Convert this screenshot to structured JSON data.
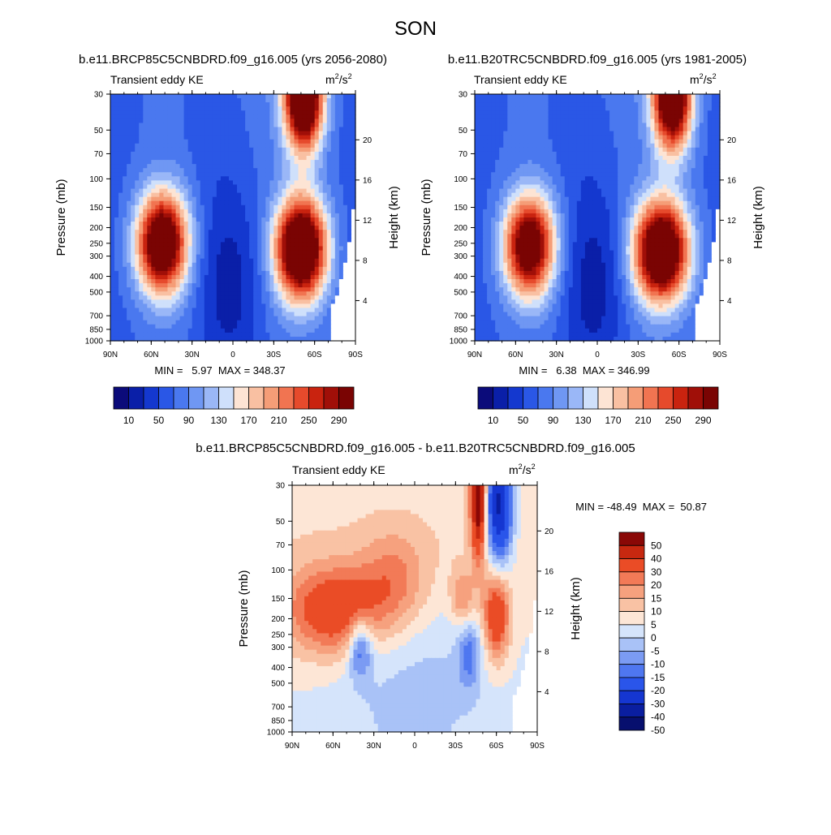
{
  "page_title": "SON",
  "chart_data": [
    {
      "type": "heatmap",
      "id": "top-left",
      "title": "b.e11.BRCP85C5CNBDRD.f09_g16.005 (yrs 2056-2080)",
      "subtitle": "Transient eddy KE",
      "units_base": "m",
      "units_sup1": "2",
      "units_mid": "/s",
      "units_sup2": "2",
      "xlabel": "",
      "ylabel": "Pressure (mb)",
      "ylabel_right": "Height (km)",
      "x_ticks": [
        "90N",
        "60N",
        "30N",
        "0",
        "30S",
        "60S",
        "90S"
      ],
      "y_ticks": [
        "30",
        "50",
        "70",
        "100",
        "150",
        "200",
        "250",
        "300",
        "400",
        "500",
        "700",
        "850",
        "1000"
      ],
      "right_ticks": [
        "20",
        "16",
        "12",
        "8",
        "4"
      ],
      "min_label": "MIN =   5.97  MAX = 348.37",
      "min": 5.97,
      "max": 348.37,
      "levels": [
        10,
        30,
        50,
        70,
        90,
        110,
        130,
        150,
        170,
        190,
        210,
        230,
        250,
        270,
        290
      ],
      "colorbar_labels": [
        "10",
        "50",
        "90",
        "130",
        "170",
        "210",
        "250",
        "290"
      ],
      "features": [
        {
          "kind": "jet",
          "lat": -50,
          "p": 270,
          "peak": 335,
          "sx": 13,
          "sy": 0.5
        },
        {
          "kind": "jet",
          "lat": 52,
          "p": 250,
          "peak": 300,
          "sx": 13,
          "sy": 0.5
        },
        {
          "kind": "strat",
          "lat": -52,
          "p": 30,
          "peak": 345,
          "sx": 10,
          "sy": 0.55
        },
        {
          "kind": "trop",
          "lat": 3,
          "p": 450,
          "peak": -65,
          "sx": 18,
          "sy": 1.2
        }
      ]
    },
    {
      "type": "heatmap",
      "id": "top-right",
      "title": "b.e11.B20TRC5CNBDRD.f09_g16.005 (yrs 1981-2005)",
      "subtitle": "Transient eddy KE",
      "units_base": "m",
      "units_sup1": "2",
      "units_mid": "/s",
      "units_sup2": "2",
      "xlabel": "",
      "ylabel": "Pressure (mb)",
      "ylabel_right": "Height (km)",
      "x_ticks": [
        "90N",
        "60N",
        "30N",
        "0",
        "30S",
        "60S",
        "90S"
      ],
      "y_ticks": [
        "30",
        "50",
        "70",
        "100",
        "150",
        "200",
        "250",
        "300",
        "400",
        "500",
        "700",
        "850",
        "1000"
      ],
      "right_ticks": [
        "20",
        "16",
        "12",
        "8",
        "4"
      ],
      "min_label": "MIN =   6.38  MAX = 346.99",
      "min": 6.38,
      "max": 346.99,
      "levels": [
        10,
        30,
        50,
        70,
        90,
        110,
        130,
        150,
        170,
        190,
        210,
        230,
        250,
        270,
        290
      ],
      "colorbar_labels": [
        "10",
        "50",
        "90",
        "130",
        "170",
        "210",
        "250",
        "290"
      ],
      "features": [
        {
          "kind": "jet",
          "lat": -47,
          "p": 280,
          "peak": 320,
          "sx": 14,
          "sy": 0.5
        },
        {
          "kind": "jet",
          "lat": 50,
          "p": 260,
          "peak": 275,
          "sx": 13,
          "sy": 0.5
        },
        {
          "kind": "strat",
          "lat": -55,
          "p": 30,
          "peak": 330,
          "sx": 10,
          "sy": 0.55
        },
        {
          "kind": "trop",
          "lat": 3,
          "p": 450,
          "peak": -65,
          "sx": 18,
          "sy": 1.2
        }
      ]
    },
    {
      "type": "heatmap",
      "id": "difference",
      "title": "b.e11.BRCP85C5CNBDRD.f09_g16.005 - b.e11.B20TRC5CNBDRD.f09_g16.005",
      "subtitle": "Transient eddy KE",
      "units_base": "m",
      "units_sup1": "2",
      "units_mid": "/s",
      "units_sup2": "2",
      "xlabel": "",
      "ylabel": "Pressure (mb)",
      "ylabel_right": "Height (km)",
      "x_ticks": [
        "90N",
        "60N",
        "30N",
        "0",
        "30S",
        "60S",
        "90S"
      ],
      "y_ticks": [
        "30",
        "50",
        "70",
        "100",
        "150",
        "200",
        "250",
        "300",
        "400",
        "500",
        "700",
        "850",
        "1000"
      ],
      "right_ticks": [
        "20",
        "16",
        "12",
        "8",
        "4"
      ],
      "min_label": "MIN = -48.49  MAX =  50.87",
      "min": -48.49,
      "max": 50.87,
      "levels": [
        -50,
        -40,
        -30,
        -20,
        -15,
        -10,
        -5,
        0,
        5,
        10,
        15,
        20,
        30,
        40,
        50
      ],
      "colorbar_labels": [
        "50",
        "40",
        "30",
        "20",
        "15",
        "10",
        "5",
        "0",
        "-5",
        "-10",
        "-15",
        "-20",
        "-30",
        "-40",
        "-50"
      ],
      "features": [
        {
          "kind": "band",
          "lat": 60,
          "p": 180,
          "peak": 28,
          "sx": 25,
          "sy": 0.45
        },
        {
          "kind": "band",
          "lat": 15,
          "p": 120,
          "peak": 15,
          "sx": 18,
          "sy": 0.5
        },
        {
          "kind": "strat",
          "lat": -47,
          "p": 35,
          "peak": 50,
          "sx": 4,
          "sy": 0.6
        },
        {
          "kind": "strat",
          "lat": -62,
          "p": 40,
          "peak": -45,
          "sx": 7,
          "sy": 0.6
        },
        {
          "kind": "jet",
          "lat": -60,
          "p": 190,
          "peak": 30,
          "sx": 7,
          "sy": 0.45
        },
        {
          "kind": "jet",
          "lat": 40,
          "p": 300,
          "peak": -22,
          "sx": 6,
          "sy": 0.3
        },
        {
          "kind": "jet",
          "lat": -40,
          "p": 330,
          "peak": -15,
          "sx": 6,
          "sy": 0.35
        },
        {
          "kind": "trop",
          "lat": 0,
          "p": 600,
          "peak": -7,
          "sx": 40,
          "sy": 1.0
        },
        {
          "kind": "trop",
          "lat": -35,
          "p": 150,
          "peak": 15,
          "sx": 6,
          "sy": 0.3
        }
      ]
    }
  ],
  "colors": {
    "kemap": [
      "#0b0b7a",
      "#0a1fa8",
      "#1438cf",
      "#2a57e6",
      "#4a78ef",
      "#6f97f3",
      "#9ab7f7",
      "#cfe0fb",
      "#fde4d4",
      "#f9c0a2",
      "#f59d77",
      "#f17451",
      "#e64a2c",
      "#c9230f",
      "#a00f08",
      "#7a0403"
    ],
    "diffmap": [
      "#070f6e",
      "#0a1ea0",
      "#1536d1",
      "#2a55ea",
      "#4f77f0",
      "#7b9bf3",
      "#a9c2f7",
      "#d5e4fb",
      "#fde6d6",
      "#f9c2a4",
      "#f6a17e",
      "#f27a57",
      "#ea4c26",
      "#c72810",
      "#8a0806"
    ]
  }
}
